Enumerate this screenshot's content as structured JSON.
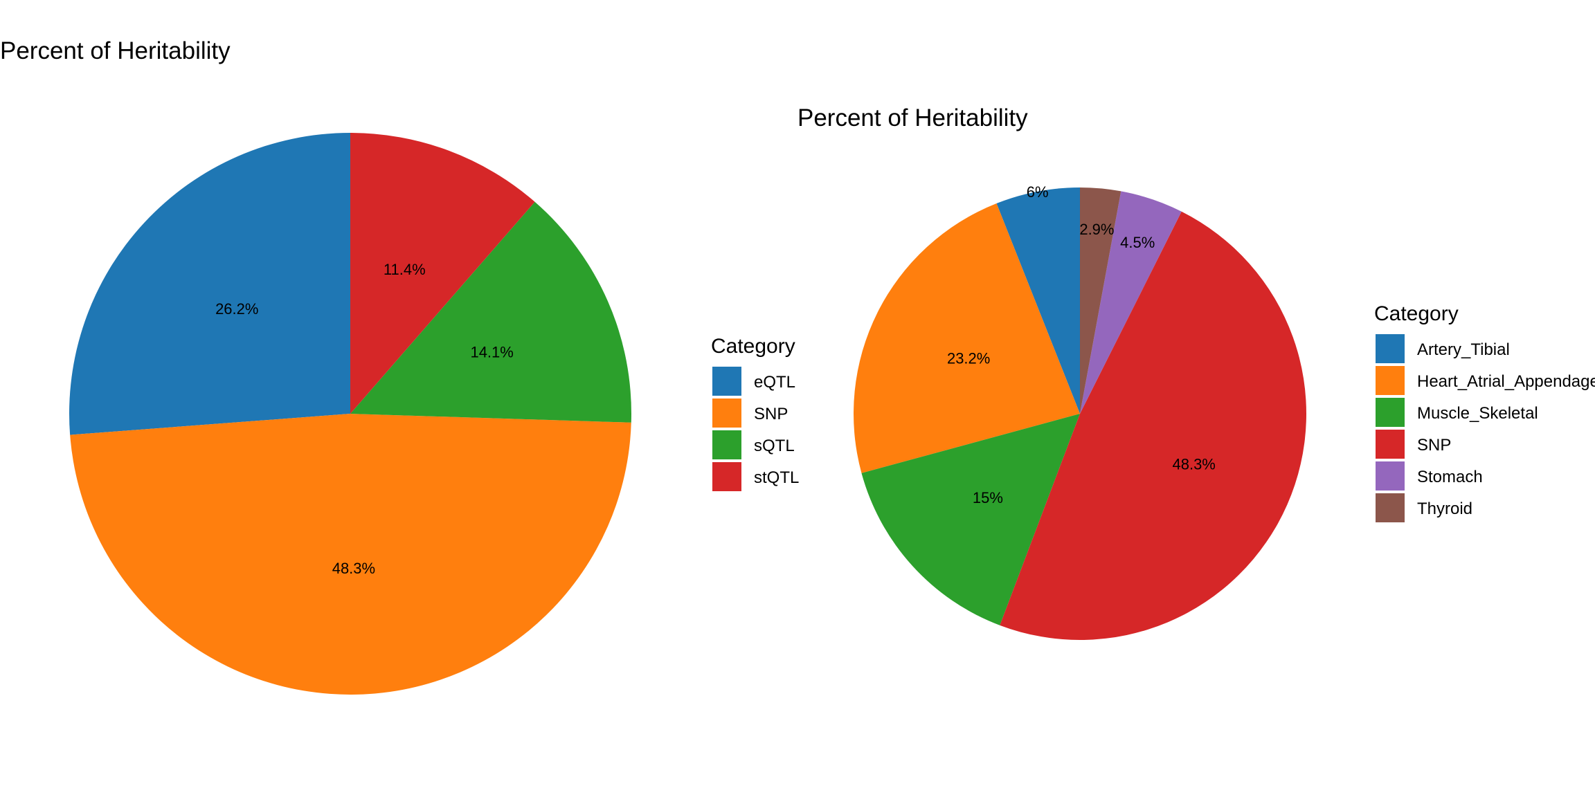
{
  "chart_data": [
    {
      "type": "pie",
      "title": "Percent of Heritability",
      "legend_title": "Category",
      "legend_position": "right",
      "direction": "clockwise",
      "start_angle": "top",
      "slices": [
        {
          "label": "eQTL",
          "value": 26.2,
          "text": "26.2%",
          "color": "#1f77b4"
        },
        {
          "label": "SNP",
          "value": 48.3,
          "text": "48.3%",
          "color": "#ff7f0e"
        },
        {
          "label": "sQTL",
          "value": 14.1,
          "text": "14.1%",
          "color": "#2ca02c"
        },
        {
          "label": "stQTL",
          "value": 11.4,
          "text": "11.4%",
          "color": "#d62728"
        }
      ]
    },
    {
      "type": "pie",
      "title": "Percent of Heritability",
      "legend_title": "Category",
      "legend_position": "right",
      "direction": "clockwise",
      "start_angle": "top",
      "slices": [
        {
          "label": "Artery_Tibial",
          "value": 6.0,
          "text": "6%",
          "color": "#1f77b4"
        },
        {
          "label": "Heart_Atrial_Appendage",
          "value": 23.2,
          "text": "23.2%",
          "color": "#ff7f0e"
        },
        {
          "label": "Muscle_Skeletal",
          "value": 15.0,
          "text": "15%",
          "color": "#2ca02c"
        },
        {
          "label": "SNP",
          "value": 48.3,
          "text": "48.3%",
          "color": "#d62728"
        },
        {
          "label": "Stomach",
          "value": 4.5,
          "text": "4.5%",
          "color": "#9467bd"
        },
        {
          "label": "Thyroid",
          "value": 2.9,
          "text": "2.9%",
          "color": "#8c564b"
        }
      ]
    }
  ]
}
